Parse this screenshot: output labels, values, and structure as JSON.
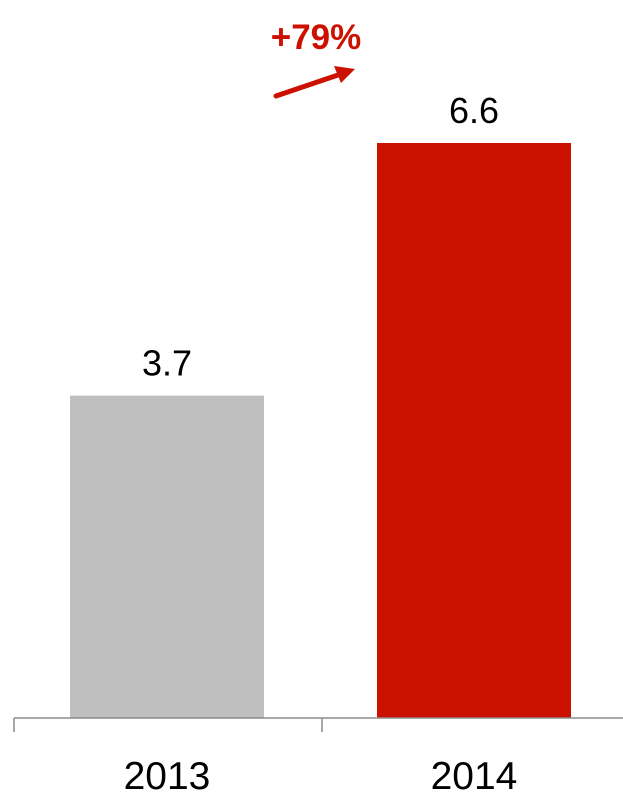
{
  "chart_data": {
    "type": "bar",
    "categories": [
      "2013",
      "2014"
    ],
    "values": [
      3.7,
      6.6
    ],
    "value_labels": [
      "3.7",
      "6.6"
    ],
    "bar_colors": [
      "#bfbfbf",
      "#cc1100"
    ],
    "title": "",
    "xlabel": "",
    "ylabel": "",
    "ylim": [
      0,
      6.6
    ],
    "grid": false,
    "legend": "none",
    "annotation": {
      "text": "+79%",
      "color": "#cc1100",
      "icon": "arrow-up-right-icon"
    }
  }
}
